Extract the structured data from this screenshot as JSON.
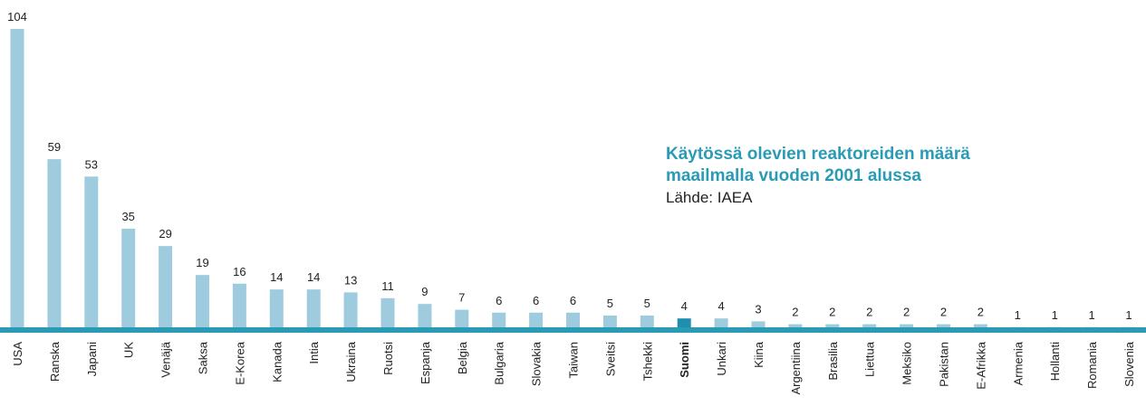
{
  "chart_data": {
    "type": "bar",
    "title": "Käytössä olevien reaktoreiden määrä",
    "subtitle": "maailmalla vuoden 2001 alussa",
    "source": "Lähde: IAEA",
    "categories": [
      "USA",
      "Ranska",
      "Japani",
      "UK",
      "Venäjä",
      "Saksa",
      "E-Korea",
      "Kanada",
      "Intia",
      "Ukraina",
      "Ruotsi",
      "Espanja",
      "Belgia",
      "Bulgaria",
      "Slovakia",
      "Taiwan",
      "Sveitsi",
      "Tshekki",
      "Suomi",
      "Unkari",
      "Kiina",
      "Argentiina",
      "Brasilia",
      "Liettua",
      "Meksiko",
      "Pakistan",
      "E-Afrikka",
      "Armenia",
      "Hollanti",
      "Romania",
      "Slovenia"
    ],
    "values": [
      104,
      59,
      53,
      35,
      29,
      19,
      16,
      14,
      14,
      13,
      11,
      9,
      7,
      6,
      6,
      6,
      5,
      5,
      4,
      4,
      3,
      2,
      2,
      2,
      2,
      2,
      2,
      1,
      1,
      1,
      1
    ],
    "color": "#9ecbde",
    "highlight_color": "#1f8fb0",
    "highlight": [
      18
    ],
    "baseline_color": "#2a9bb5",
    "title_color": "#2a9bb5",
    "ylim": [
      0,
      104
    ]
  }
}
